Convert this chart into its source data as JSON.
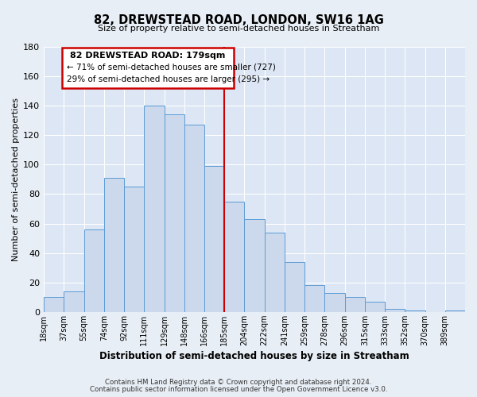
{
  "title": "82, DREWSTEAD ROAD, LONDON, SW16 1AG",
  "subtitle": "Size of property relative to semi-detached houses in Streatham",
  "xlabel": "Distribution of semi-detached houses by size in Streatham",
  "ylabel": "Number of semi-detached properties",
  "bar_labels": [
    "18sqm",
    "37sqm",
    "55sqm",
    "74sqm",
    "92sqm",
    "111sqm",
    "129sqm",
    "148sqm",
    "166sqm",
    "185sqm",
    "204sqm",
    "222sqm",
    "241sqm",
    "259sqm",
    "278sqm",
    "296sqm",
    "315sqm",
    "333sqm",
    "352sqm",
    "370sqm",
    "389sqm"
  ],
  "bar_values": [
    10,
    14,
    56,
    91,
    85,
    140,
    134,
    127,
    99,
    75,
    63,
    54,
    34,
    18,
    13,
    10,
    7,
    2,
    1,
    0,
    1
  ],
  "bar_color": "#ccd9ec",
  "bar_edge_color": "#5b9bd5",
  "vline_x_idx": 9,
  "vline_color": "#cc0000",
  "annotation_title": "82 DREWSTEAD ROAD: 179sqm",
  "annotation_line1": "← 71% of semi-detached houses are smaller (727)",
  "annotation_line2": "29% of semi-detached houses are larger (295) →",
  "annotation_box_color": "#cc0000",
  "annotation_fill": "#ffffff",
  "ylim": [
    0,
    180
  ],
  "yticks": [
    0,
    20,
    40,
    60,
    80,
    100,
    120,
    140,
    160,
    180
  ],
  "footer1": "Contains HM Land Registry data © Crown copyright and database right 2024.",
  "footer2": "Contains public sector information licensed under the Open Government Licence v3.0.",
  "background_color": "#e8eef5",
  "plot_background": "#dce6f4",
  "grid_color": "#ffffff"
}
